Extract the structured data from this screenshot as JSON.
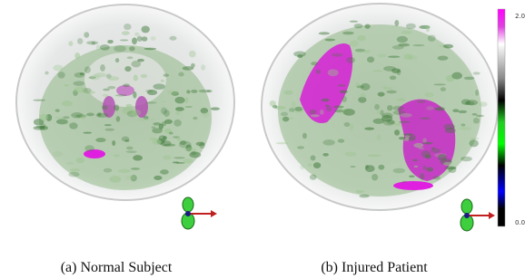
{
  "panels": [
    {
      "caption": "(a) Normal Subject"
    },
    {
      "caption": "(b) Injured Patient"
    }
  ],
  "colorbar": {
    "top_label": "2.0",
    "bottom_label": "0.0"
  }
}
